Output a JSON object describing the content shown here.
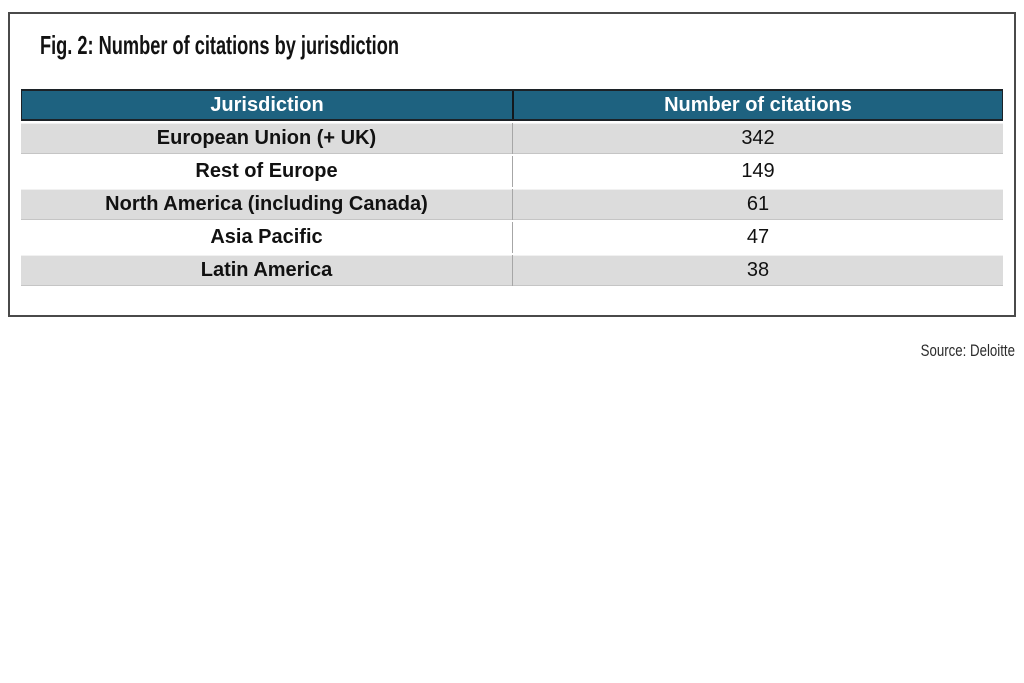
{
  "figure": {
    "title": "Fig. 2: Number of citations by jurisdiction"
  },
  "table": {
    "header": {
      "jurisdiction": "Jurisdiction",
      "citations": "Number of citations"
    },
    "rows": [
      {
        "jurisdiction": "European Union (+ UK)",
        "citations": "342"
      },
      {
        "jurisdiction": "Rest of Europe",
        "citations": "149"
      },
      {
        "jurisdiction": "North America (including Canada)",
        "citations": "61"
      },
      {
        "jurisdiction": "Asia Pacific",
        "citations": "47"
      },
      {
        "jurisdiction": "Latin America",
        "citations": "38"
      }
    ]
  },
  "source": "Source: Deloitte",
  "colors": {
    "header_bg": "#1e6280",
    "header_text": "#ffffff",
    "row_alt_bg": "#dcdcdc",
    "row_bg": "#ffffff",
    "box_border": "#4a4a4a",
    "body_text": "#111111"
  },
  "chart_data": {
    "type": "table",
    "title": "Fig. 2: Number of citations by jurisdiction",
    "columns": [
      "Jurisdiction",
      "Number of citations"
    ],
    "categories": [
      "European Union (+ UK)",
      "Rest of Europe",
      "North America (including Canada)",
      "Asia Pacific",
      "Latin America"
    ],
    "values": [
      342,
      149,
      61,
      47,
      38
    ],
    "source": "Source: Deloitte",
    "legend_position": "none",
    "grid": false
  }
}
